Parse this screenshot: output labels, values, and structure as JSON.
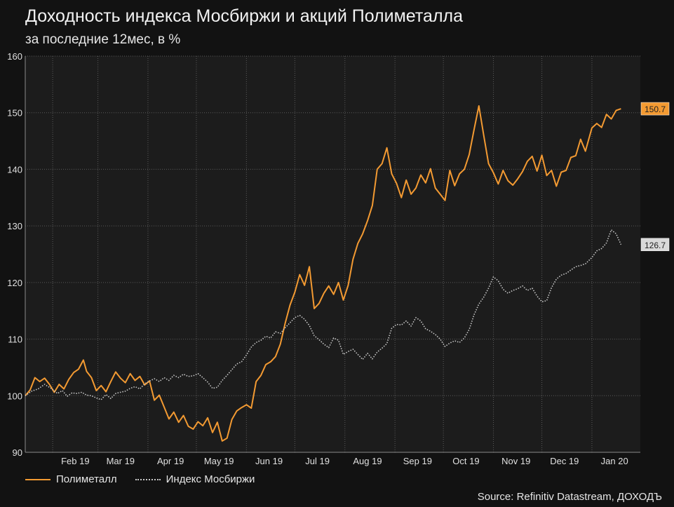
{
  "header": {
    "title": "Доходность индекса Мосбиржи и акций Полиметалла",
    "subtitle": "за последние 12мес, в %"
  },
  "source": "Source: Refinitiv Datastream, ДОХОДЪ",
  "chart_data": {
    "type": "line",
    "title": "Доходность индекса Мосбиржи и акций Полиметалла",
    "subtitle": "за последние 12мес, в %",
    "ylim": [
      90,
      160
    ],
    "yticks": [
      90,
      100,
      110,
      120,
      130,
      140,
      150,
      160
    ],
    "x_range": [
      "2019-01-15",
      "2020-01-31"
    ],
    "x_ticks": [
      {
        "label": "Feb 19",
        "date": "2019-02-15"
      },
      {
        "label": "Mar 19",
        "date": "2019-03-15"
      },
      {
        "label": "Apr 19",
        "date": "2019-04-15"
      },
      {
        "label": "May 19",
        "date": "2019-05-15"
      },
      {
        "label": "Jun 19",
        "date": "2019-06-15"
      },
      {
        "label": "Jul 19",
        "date": "2019-07-15"
      },
      {
        "label": "Aug 19",
        "date": "2019-08-15"
      },
      {
        "label": "Sep 19",
        "date": "2019-09-15"
      },
      {
        "label": "Oct 19",
        "date": "2019-10-15"
      },
      {
        "label": "Nov 19",
        "date": "2019-11-15"
      },
      {
        "label": "Dec 19",
        "date": "2019-12-15"
      },
      {
        "label": "Jan 20",
        "date": "2020-01-15"
      }
    ],
    "grid": true,
    "legend": "bottom-left",
    "series": [
      {
        "name": "Полиметалл",
        "color": "#f39a32",
        "style": "solid",
        "last_label": "150.7",
        "points": [
          [
            "2019-01-15",
            100.0
          ],
          [
            "2019-01-18",
            101.0
          ],
          [
            "2019-01-21",
            103.2
          ],
          [
            "2019-01-24",
            102.5
          ],
          [
            "2019-01-27",
            103.1
          ],
          [
            "2019-01-30",
            102.0
          ],
          [
            "2019-02-02",
            100.6
          ],
          [
            "2019-02-05",
            102.0
          ],
          [
            "2019-02-08",
            101.2
          ],
          [
            "2019-02-11",
            102.9
          ],
          [
            "2019-02-14",
            104.1
          ],
          [
            "2019-02-17",
            104.7
          ],
          [
            "2019-02-20",
            106.3
          ],
          [
            "2019-02-22",
            104.3
          ],
          [
            "2019-02-25",
            103.2
          ],
          [
            "2019-02-28",
            100.9
          ],
          [
            "2019-03-03",
            101.8
          ],
          [
            "2019-03-06",
            100.7
          ],
          [
            "2019-03-09",
            102.5
          ],
          [
            "2019-03-12",
            104.2
          ],
          [
            "2019-03-15",
            103.1
          ],
          [
            "2019-03-18",
            102.3
          ],
          [
            "2019-03-21",
            103.9
          ],
          [
            "2019-03-24",
            102.7
          ],
          [
            "2019-03-27",
            103.4
          ],
          [
            "2019-03-30",
            101.9
          ],
          [
            "2019-04-02",
            102.6
          ],
          [
            "2019-04-05",
            99.2
          ],
          [
            "2019-04-08",
            100.1
          ],
          [
            "2019-04-11",
            98.0
          ],
          [
            "2019-04-14",
            95.9
          ],
          [
            "2019-04-17",
            97.1
          ],
          [
            "2019-04-20",
            95.3
          ],
          [
            "2019-04-23",
            96.5
          ],
          [
            "2019-04-26",
            94.6
          ],
          [
            "2019-04-29",
            94.1
          ],
          [
            "2019-05-02",
            95.4
          ],
          [
            "2019-05-05",
            94.7
          ],
          [
            "2019-05-08",
            96.1
          ],
          [
            "2019-05-11",
            93.5
          ],
          [
            "2019-05-14",
            95.3
          ],
          [
            "2019-05-17",
            92.0
          ],
          [
            "2019-05-20",
            92.5
          ],
          [
            "2019-05-23",
            95.8
          ],
          [
            "2019-05-26",
            97.3
          ],
          [
            "2019-05-29",
            97.9
          ],
          [
            "2019-06-01",
            98.4
          ],
          [
            "2019-06-04",
            97.8
          ],
          [
            "2019-06-07",
            102.5
          ],
          [
            "2019-06-10",
            103.6
          ],
          [
            "2019-06-13",
            105.5
          ],
          [
            "2019-06-16",
            106.0
          ],
          [
            "2019-06-19",
            106.9
          ],
          [
            "2019-06-22",
            109.1
          ],
          [
            "2019-06-25",
            112.8
          ],
          [
            "2019-06-28",
            116.0
          ],
          [
            "2019-07-01",
            118.3
          ],
          [
            "2019-07-04",
            121.4
          ],
          [
            "2019-07-07",
            119.5
          ],
          [
            "2019-07-10",
            122.8
          ],
          [
            "2019-07-13",
            115.4
          ],
          [
            "2019-07-16",
            116.3
          ],
          [
            "2019-07-19",
            118.1
          ],
          [
            "2019-07-22",
            119.4
          ],
          [
            "2019-07-25",
            117.9
          ],
          [
            "2019-07-28",
            120.0
          ],
          [
            "2019-07-31",
            116.9
          ],
          [
            "2019-08-03",
            119.5
          ],
          [
            "2019-08-06",
            124.1
          ],
          [
            "2019-08-09",
            126.9
          ],
          [
            "2019-08-12",
            128.6
          ],
          [
            "2019-08-15",
            130.9
          ],
          [
            "2019-08-18",
            133.6
          ],
          [
            "2019-08-21",
            140.0
          ],
          [
            "2019-08-24",
            141.0
          ],
          [
            "2019-08-27",
            143.8
          ],
          [
            "2019-08-30",
            139.2
          ],
          [
            "2019-09-02",
            137.5
          ],
          [
            "2019-09-05",
            135.0
          ],
          [
            "2019-09-08",
            138.1
          ],
          [
            "2019-09-11",
            135.6
          ],
          [
            "2019-09-14",
            136.7
          ],
          [
            "2019-09-17",
            139.0
          ],
          [
            "2019-09-20",
            137.6
          ],
          [
            "2019-09-23",
            140.1
          ],
          [
            "2019-09-26",
            136.7
          ],
          [
            "2019-09-29",
            135.6
          ],
          [
            "2019-10-02",
            134.5
          ],
          [
            "2019-10-05",
            139.8
          ],
          [
            "2019-10-08",
            137.1
          ],
          [
            "2019-10-11",
            139.2
          ],
          [
            "2019-10-14",
            140.0
          ],
          [
            "2019-10-17",
            142.6
          ],
          [
            "2019-10-20",
            147.0
          ],
          [
            "2019-10-23",
            151.2
          ],
          [
            "2019-10-26",
            146.0
          ],
          [
            "2019-10-29",
            141.0
          ],
          [
            "2019-11-01",
            139.4
          ],
          [
            "2019-11-04",
            137.4
          ],
          [
            "2019-11-07",
            139.8
          ],
          [
            "2019-11-10",
            138.0
          ],
          [
            "2019-11-13",
            137.2
          ],
          [
            "2019-11-16",
            138.3
          ],
          [
            "2019-11-19",
            139.6
          ],
          [
            "2019-11-22",
            141.4
          ],
          [
            "2019-11-25",
            142.3
          ],
          [
            "2019-11-28",
            139.7
          ],
          [
            "2019-12-01",
            142.5
          ],
          [
            "2019-12-04",
            138.9
          ],
          [
            "2019-12-07",
            139.8
          ],
          [
            "2019-12-10",
            137.0
          ],
          [
            "2019-12-13",
            139.5
          ],
          [
            "2019-12-16",
            139.8
          ],
          [
            "2019-12-19",
            142.1
          ],
          [
            "2019-12-22",
            142.4
          ],
          [
            "2019-12-25",
            145.3
          ],
          [
            "2019-12-28",
            143.2
          ],
          [
            "2020-01-01",
            147.3
          ],
          [
            "2020-01-04",
            148.1
          ],
          [
            "2020-01-07",
            147.4
          ],
          [
            "2020-01-10",
            149.7
          ],
          [
            "2020-01-13",
            148.9
          ],
          [
            "2020-01-16",
            150.4
          ],
          [
            "2020-01-19",
            150.7
          ]
        ]
      },
      {
        "name": "Индекс Мосбиржи",
        "color": "#c8c8c8",
        "style": "dotted",
        "last_label": "126.7",
        "points": [
          [
            "2019-01-15",
            100.0
          ],
          [
            "2019-01-19",
            100.8
          ],
          [
            "2019-01-23",
            101.2
          ],
          [
            "2019-01-27",
            102.0
          ],
          [
            "2019-01-31",
            101.3
          ],
          [
            "2019-02-04",
            100.4
          ],
          [
            "2019-02-07",
            100.9
          ],
          [
            "2019-02-10",
            99.9
          ],
          [
            "2019-02-13",
            100.5
          ],
          [
            "2019-02-16",
            100.4
          ],
          [
            "2019-02-19",
            100.6
          ],
          [
            "2019-02-22",
            100.1
          ],
          [
            "2019-02-25",
            100.0
          ],
          [
            "2019-02-28",
            99.6
          ],
          [
            "2019-03-03",
            99.3
          ],
          [
            "2019-03-06",
            100.2
          ],
          [
            "2019-03-09",
            99.5
          ],
          [
            "2019-03-12",
            100.4
          ],
          [
            "2019-03-15",
            100.6
          ],
          [
            "2019-03-18",
            100.8
          ],
          [
            "2019-03-21",
            101.3
          ],
          [
            "2019-03-24",
            101.6
          ],
          [
            "2019-03-27",
            101.2
          ],
          [
            "2019-03-30",
            102.1
          ],
          [
            "2019-04-02",
            102.6
          ],
          [
            "2019-04-05",
            103.0
          ],
          [
            "2019-04-08",
            102.5
          ],
          [
            "2019-04-11",
            103.2
          ],
          [
            "2019-04-14",
            102.7
          ],
          [
            "2019-04-17",
            103.6
          ],
          [
            "2019-04-20",
            103.2
          ],
          [
            "2019-04-23",
            103.8
          ],
          [
            "2019-04-26",
            103.4
          ],
          [
            "2019-04-29",
            103.5
          ],
          [
            "2019-05-02",
            103.9
          ],
          [
            "2019-05-05",
            103.2
          ],
          [
            "2019-05-08",
            102.4
          ],
          [
            "2019-05-11",
            101.3
          ],
          [
            "2019-05-14",
            101.5
          ],
          [
            "2019-05-17",
            102.7
          ],
          [
            "2019-05-20",
            103.6
          ],
          [
            "2019-05-23",
            104.6
          ],
          [
            "2019-05-26",
            105.6
          ],
          [
            "2019-05-29",
            106.0
          ],
          [
            "2019-06-01",
            107.2
          ],
          [
            "2019-06-04",
            108.6
          ],
          [
            "2019-06-07",
            109.4
          ],
          [
            "2019-06-10",
            109.8
          ],
          [
            "2019-06-13",
            110.5
          ],
          [
            "2019-06-16",
            110.2
          ],
          [
            "2019-06-19",
            111.3
          ],
          [
            "2019-06-22",
            111.0
          ],
          [
            "2019-06-25",
            112.0
          ],
          [
            "2019-06-28",
            112.9
          ],
          [
            "2019-07-01",
            113.8
          ],
          [
            "2019-07-04",
            114.2
          ],
          [
            "2019-07-07",
            113.5
          ],
          [
            "2019-07-10",
            112.4
          ],
          [
            "2019-07-13",
            110.6
          ],
          [
            "2019-07-16",
            109.9
          ],
          [
            "2019-07-19",
            109.1
          ],
          [
            "2019-07-22",
            108.5
          ],
          [
            "2019-07-25",
            110.2
          ],
          [
            "2019-07-28",
            109.8
          ],
          [
            "2019-07-31",
            107.3
          ],
          [
            "2019-08-03",
            107.8
          ],
          [
            "2019-08-06",
            108.2
          ],
          [
            "2019-08-09",
            107.3
          ],
          [
            "2019-08-12",
            106.4
          ],
          [
            "2019-08-15",
            107.5
          ],
          [
            "2019-08-18",
            106.5
          ],
          [
            "2019-08-21",
            107.7
          ],
          [
            "2019-08-24",
            108.4
          ],
          [
            "2019-08-27",
            109.2
          ],
          [
            "2019-08-30",
            111.9
          ],
          [
            "2019-09-02",
            112.6
          ],
          [
            "2019-09-05",
            112.5
          ],
          [
            "2019-09-08",
            113.2
          ],
          [
            "2019-09-11",
            112.3
          ],
          [
            "2019-09-14",
            113.8
          ],
          [
            "2019-09-17",
            113.2
          ],
          [
            "2019-09-20",
            111.8
          ],
          [
            "2019-09-23",
            111.4
          ],
          [
            "2019-09-26",
            110.8
          ],
          [
            "2019-09-29",
            110.0
          ],
          [
            "2019-10-02",
            108.7
          ],
          [
            "2019-10-05",
            109.3
          ],
          [
            "2019-10-08",
            109.7
          ],
          [
            "2019-10-11",
            109.4
          ],
          [
            "2019-10-14",
            110.2
          ],
          [
            "2019-10-17",
            111.7
          ],
          [
            "2019-10-20",
            114.3
          ],
          [
            "2019-10-23",
            116.2
          ],
          [
            "2019-10-26",
            117.4
          ],
          [
            "2019-10-29",
            119.0
          ],
          [
            "2019-11-01",
            121.0
          ],
          [
            "2019-11-04",
            120.3
          ],
          [
            "2019-11-07",
            118.8
          ],
          [
            "2019-11-10",
            118.1
          ],
          [
            "2019-11-13",
            118.6
          ],
          [
            "2019-11-16",
            118.9
          ],
          [
            "2019-11-19",
            119.4
          ],
          [
            "2019-11-22",
            118.6
          ],
          [
            "2019-11-25",
            119.0
          ],
          [
            "2019-11-28",
            117.6
          ],
          [
            "2019-12-01",
            116.6
          ],
          [
            "2019-12-04",
            116.8
          ],
          [
            "2019-12-07",
            119.1
          ],
          [
            "2019-12-10",
            120.6
          ],
          [
            "2019-12-13",
            121.3
          ],
          [
            "2019-12-16",
            121.6
          ],
          [
            "2019-12-19",
            122.2
          ],
          [
            "2019-12-22",
            122.8
          ],
          [
            "2019-12-25",
            123.0
          ],
          [
            "2019-12-28",
            123.3
          ],
          [
            "2020-01-01",
            124.4
          ],
          [
            "2020-01-04",
            125.6
          ],
          [
            "2020-01-07",
            126.0
          ],
          [
            "2020-01-10",
            127.0
          ],
          [
            "2020-01-13",
            129.3
          ],
          [
            "2020-01-16",
            128.6
          ],
          [
            "2020-01-19",
            126.7
          ]
        ]
      }
    ]
  }
}
